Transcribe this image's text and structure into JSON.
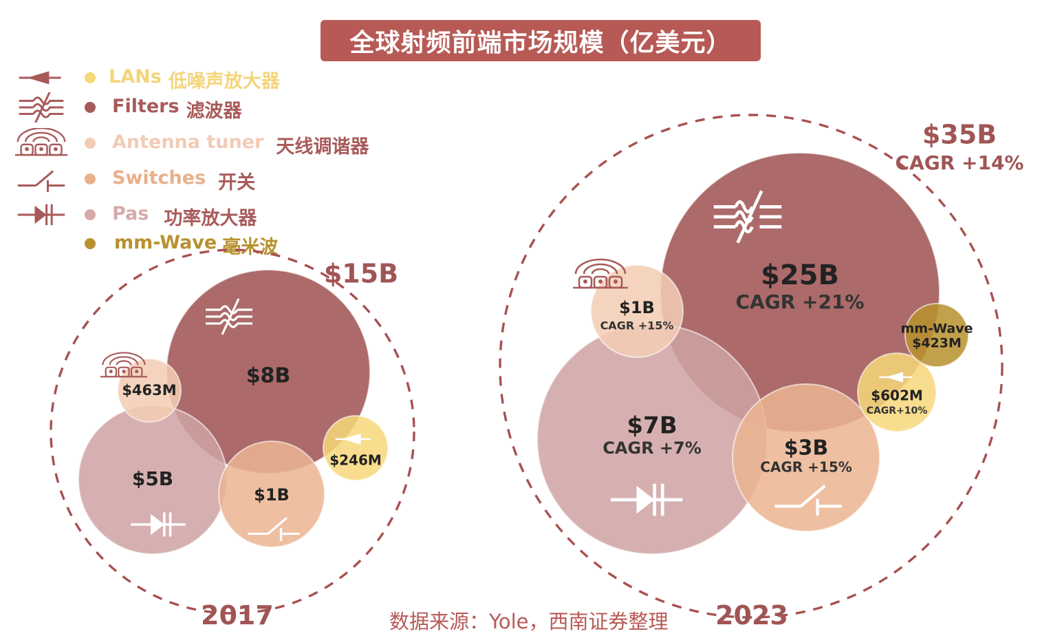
{
  "title": "全球射频前端市场规模（亿美元）",
  "legend": [
    {
      "en": "LANs",
      "cn": "低噪声放大器",
      "color": "#f6d77a",
      "en_color": "#f3d57a",
      "cn_color": "#f3d57a",
      "icon": "amplifier-icon"
    },
    {
      "en": "Filters",
      "cn": "滤波器",
      "color": "#a85a5a",
      "en_color": "#a85a5a",
      "cn_color": "#a85a5a",
      "icon": "filter-icon"
    },
    {
      "en": "Antenna tuner",
      "cn": "天线调谐器",
      "color": "#f2cbb5",
      "en_color": "#f2cbb5",
      "cn_color": "#a85a5a",
      "icon": "antenna-icon"
    },
    {
      "en": "Switches",
      "cn": "开关",
      "color": "#eab08a",
      "en_color": "#eab08a",
      "cn_color": "#a85a5a",
      "icon": "switch-icon"
    },
    {
      "en": "Pas",
      "cn": "功率放大器",
      "color": "#d7aaaa",
      "en_color": "#d7aaaa",
      "cn_color": "#a85a5a",
      "icon": "diode-icon"
    },
    {
      "en": "mm-Wave",
      "cn": "毫米波",
      "color": "#b8912f",
      "en_color": "#b8912f",
      "cn_color": "#b8912f",
      "icon": ""
    }
  ],
  "source": "数据来源：Yole，西南证券整理",
  "chart_data": [
    {
      "type": "bubble",
      "year": "2017",
      "total_label": "$15B",
      "total_billion_usd": 15,
      "bubbles": [
        {
          "segment": "Filters",
          "label": "$8B",
          "value_billion_usd": 8,
          "cagr": "",
          "color": "#ac6a6a"
        },
        {
          "segment": "Pas",
          "label": "$5B",
          "value_billion_usd": 5,
          "cagr": "",
          "color": "#cfa3a3"
        },
        {
          "segment": "Switches",
          "label": "$1B",
          "value_billion_usd": 1,
          "cagr": "",
          "color": "#ebb591"
        },
        {
          "segment": "Antenna tuner",
          "label": "$463M",
          "value_billion_usd": 0.463,
          "cagr": "",
          "color": "#f3cdb5"
        },
        {
          "segment": "LANs",
          "label": "$246M",
          "value_billion_usd": 0.246,
          "cagr": "",
          "color": "#f6d77a"
        }
      ]
    },
    {
      "type": "bubble",
      "year": "2023",
      "total_label": "$35B",
      "total_billion_usd": 35,
      "total_cagr": "CAGR +14%",
      "bubbles": [
        {
          "segment": "Filters",
          "label": "$25B",
          "value_billion_usd": 25,
          "cagr": "CAGR +21%",
          "color": "#ac6a6a"
        },
        {
          "segment": "Pas",
          "label": "$7B",
          "value_billion_usd": 7,
          "cagr": "CAGR +7%",
          "color": "#cfa3a3"
        },
        {
          "segment": "Switches",
          "label": "$3B",
          "value_billion_usd": 3,
          "cagr": "CAGR +15%",
          "color": "#ebb591"
        },
        {
          "segment": "Antenna tuner",
          "label": "$1B",
          "value_billion_usd": 1,
          "cagr": "CAGR +15%",
          "color": "#f3cdb5"
        },
        {
          "segment": "LANs",
          "label": "$602M",
          "value_billion_usd": 0.602,
          "cagr": "CAGR+10%",
          "color": "#f6d77a"
        },
        {
          "segment": "mm-Wave",
          "label": "mm-Wave\n$423M",
          "value_billion_usd": 0.423,
          "cagr": "",
          "color": "#b8912f"
        }
      ]
    }
  ]
}
